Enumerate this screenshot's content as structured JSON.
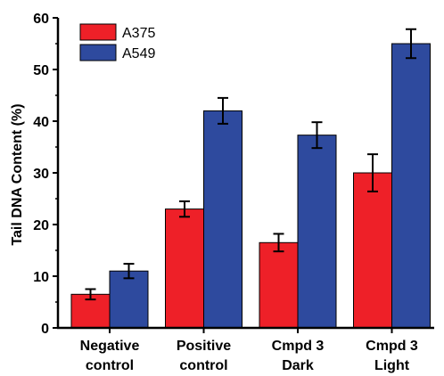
{
  "chart_data": {
    "type": "bar",
    "categories": [
      [
        "Negative",
        "control"
      ],
      [
        "Positive",
        "control"
      ],
      [
        "Cmpd 3",
        "Dark"
      ],
      [
        "Cmpd 3",
        "Light"
      ]
    ],
    "series": [
      {
        "name": "A375",
        "color": "#ee2028",
        "values": [
          6.5,
          23.0,
          16.5,
          30.0
        ],
        "errors": [
          1.0,
          1.5,
          1.7,
          3.6
        ]
      },
      {
        "name": "A549",
        "color": "#2e4a9e",
        "values": [
          11.0,
          42.0,
          37.3,
          55.0
        ],
        "errors": [
          1.4,
          2.5,
          2.5,
          2.8
        ]
      }
    ],
    "title": "",
    "xlabel": "",
    "ylabel": "Tail DNA Content (%)",
    "ylim": [
      0,
      60
    ],
    "yticks": [
      0,
      10,
      20,
      30,
      40,
      50,
      60
    ],
    "grid": false,
    "legend_position": "top-left"
  }
}
